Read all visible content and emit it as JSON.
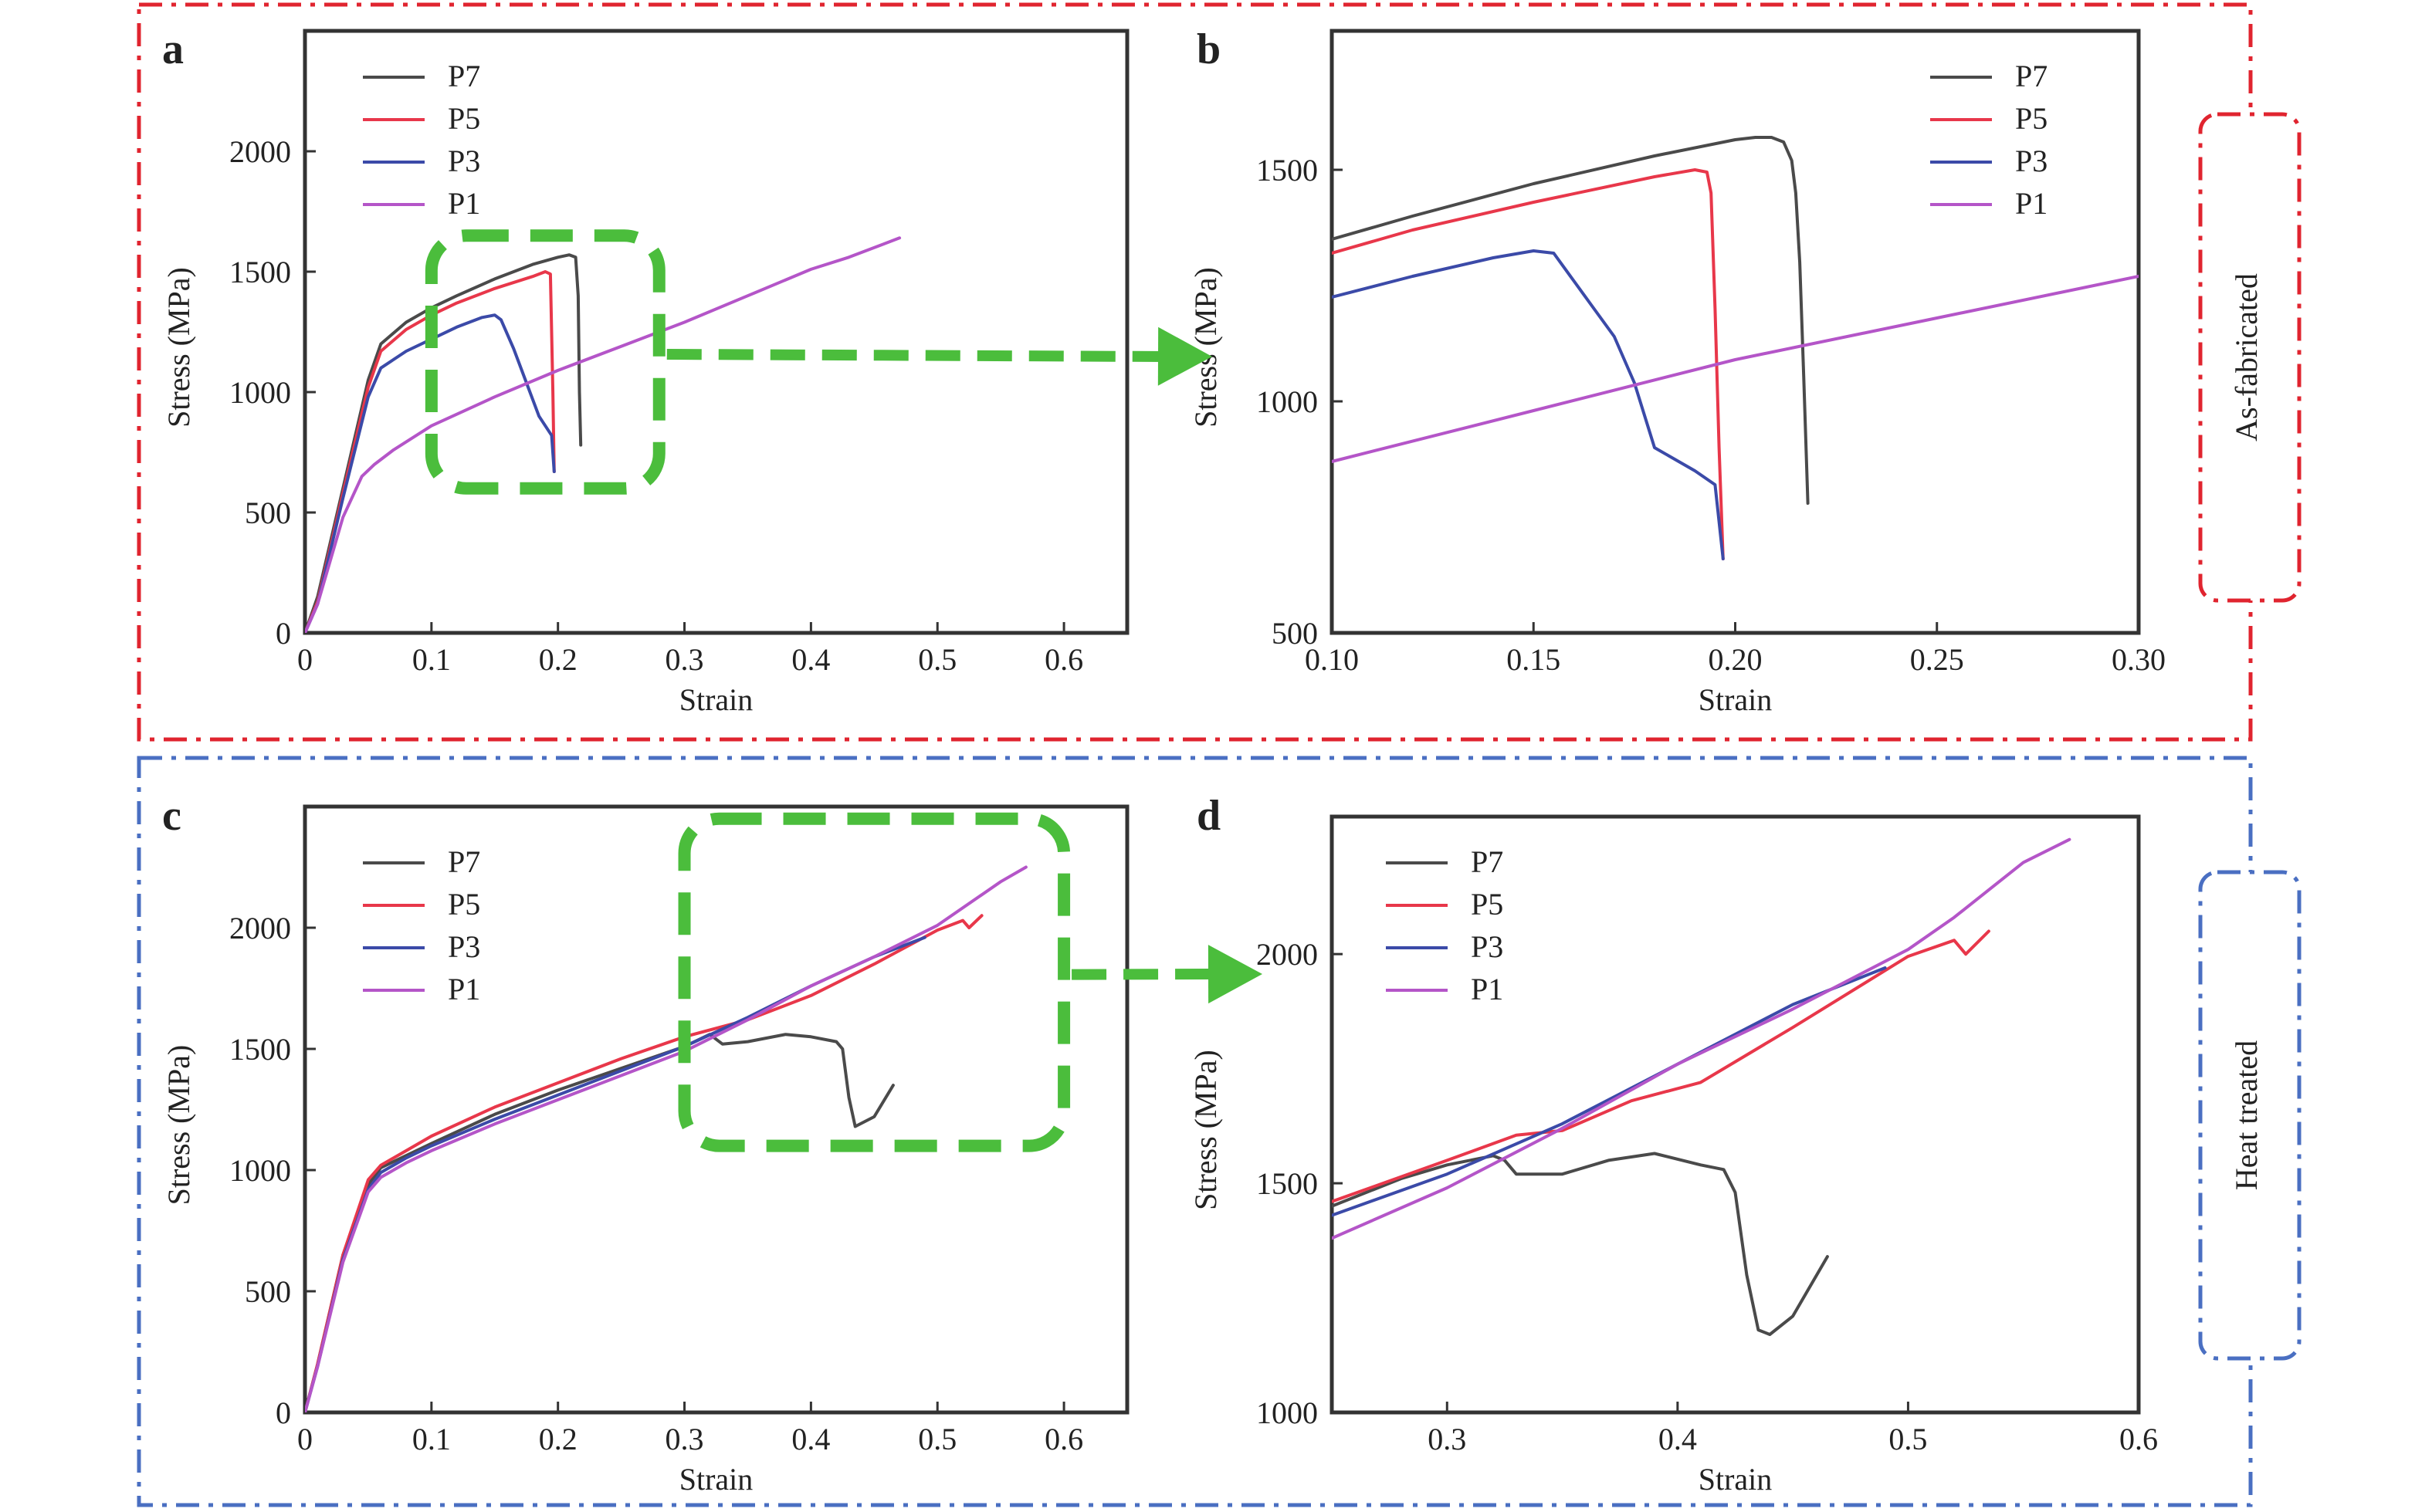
{
  "figure": {
    "group_labels": {
      "top": "As-fabricated",
      "bottom": "Heat treated"
    },
    "colors": {
      "top_frame": "#e0242f",
      "bottom_frame": "#4a6fc2",
      "zoom_box": "#4bbd3c",
      "P7": "#4a4a4a",
      "P5": "#e8374a",
      "P3": "#3b4aa8",
      "P1": "#b455c8"
    }
  },
  "chart_data": [
    {
      "panel": "a",
      "type": "line",
      "xlabel": "Strain",
      "ylabel": "Stress (MPa)",
      "xlim": [
        0,
        0.65
      ],
      "ylim": [
        0,
        2500
      ],
      "xticks": [
        "0",
        "0.1",
        "0.2",
        "0.3",
        "0.4",
        "0.5",
        "0.6"
      ],
      "xtick_values": [
        0,
        0.1,
        0.2,
        0.3,
        0.4,
        0.5,
        0.6
      ],
      "yticks": [
        "0",
        "500",
        "1000",
        "1500",
        "2000"
      ],
      "ytick_values": [
        0,
        500,
        1000,
        1500,
        2000
      ],
      "legend_position": "top-left",
      "zoom_region": {
        "x": [
          0.1,
          0.28
        ],
        "y": [
          600,
          1650
        ]
      },
      "series": [
        {
          "name": "P7",
          "color": "#4a4a4a",
          "x": [
            0,
            0.01,
            0.03,
            0.05,
            0.06,
            0.08,
            0.1,
            0.12,
            0.15,
            0.18,
            0.2,
            0.209,
            0.214,
            0.216,
            0.217,
            0.218
          ],
          "y": [
            0,
            150,
            600,
            1050,
            1200,
            1290,
            1350,
            1400,
            1470,
            1530,
            1560,
            1570,
            1560,
            1400,
            1000,
            780
          ]
        },
        {
          "name": "P5",
          "color": "#e8374a",
          "x": [
            0,
            0.01,
            0.03,
            0.05,
            0.06,
            0.08,
            0.1,
            0.12,
            0.15,
            0.18,
            0.19,
            0.194,
            0.196,
            0.197
          ],
          "y": [
            0,
            130,
            580,
            1020,
            1170,
            1260,
            1320,
            1370,
            1430,
            1480,
            1500,
            1490,
            1000,
            670
          ]
        },
        {
          "name": "P3",
          "color": "#3b4aa8",
          "x": [
            0,
            0.01,
            0.03,
            0.05,
            0.06,
            0.08,
            0.1,
            0.12,
            0.14,
            0.15,
            0.155,
            0.165,
            0.175,
            0.185,
            0.195,
            0.197
          ],
          "y": [
            0,
            120,
            560,
            980,
            1100,
            1170,
            1220,
            1270,
            1310,
            1320,
            1300,
            1180,
            1040,
            900,
            820,
            670
          ]
        },
        {
          "name": "P1",
          "color": "#b455c8",
          "x": [
            0,
            0.01,
            0.03,
            0.045,
            0.055,
            0.07,
            0.1,
            0.15,
            0.2,
            0.25,
            0.3,
            0.35,
            0.4,
            0.43,
            0.47
          ],
          "y": [
            0,
            120,
            480,
            650,
            700,
            760,
            860,
            980,
            1090,
            1190,
            1290,
            1400,
            1510,
            1560,
            1640
          ]
        }
      ]
    },
    {
      "panel": "b",
      "type": "line",
      "xlabel": "Strain",
      "ylabel": "Stress (MPa)",
      "xlim": [
        0.1,
        0.3
      ],
      "ylim": [
        500,
        1800
      ],
      "xticks": [
        "0.10",
        "0.15",
        "0.20",
        "0.25",
        "0.30"
      ],
      "xtick_values": [
        0.1,
        0.15,
        0.2,
        0.25,
        0.3
      ],
      "yticks": [
        "500",
        "1000",
        "1500"
      ],
      "ytick_values": [
        500,
        1000,
        1500
      ],
      "legend_position": "top-right",
      "series": [
        {
          "name": "P7",
          "color": "#4a4a4a",
          "x": [
            0.1,
            0.12,
            0.15,
            0.18,
            0.2,
            0.205,
            0.209,
            0.212,
            0.214,
            0.215,
            0.216,
            0.217,
            0.218
          ],
          "y": [
            1350,
            1400,
            1470,
            1530,
            1565,
            1570,
            1570,
            1560,
            1520,
            1450,
            1300,
            1050,
            780
          ]
        },
        {
          "name": "P5",
          "color": "#e8374a",
          "x": [
            0.1,
            0.12,
            0.15,
            0.18,
            0.19,
            0.193,
            0.194,
            0.195,
            0.196,
            0.197
          ],
          "y": [
            1320,
            1370,
            1430,
            1485,
            1500,
            1495,
            1450,
            1200,
            900,
            660
          ]
        },
        {
          "name": "P3",
          "color": "#3b4aa8",
          "x": [
            0.1,
            0.12,
            0.14,
            0.15,
            0.155,
            0.16,
            0.165,
            0.17,
            0.175,
            0.18,
            0.19,
            0.195,
            0.197
          ],
          "y": [
            1225,
            1270,
            1310,
            1325,
            1320,
            1260,
            1200,
            1140,
            1040,
            900,
            850,
            820,
            660
          ]
        },
        {
          "name": "P1",
          "color": "#b455c8",
          "x": [
            0.1,
            0.15,
            0.2,
            0.25,
            0.3
          ],
          "y": [
            870,
            980,
            1090,
            1180,
            1270
          ]
        }
      ]
    },
    {
      "panel": "c",
      "type": "line",
      "xlabel": "Strain",
      "ylabel": "Stress (MPa)",
      "xlim": [
        0,
        0.65
      ],
      "ylim": [
        0,
        2500
      ],
      "xticks": [
        "0",
        "0.1",
        "0.2",
        "0.3",
        "0.4",
        "0.5",
        "0.6"
      ],
      "xtick_values": [
        0,
        0.1,
        0.2,
        0.3,
        0.4,
        0.5,
        0.6
      ],
      "yticks": [
        "0",
        "500",
        "1000",
        "1500",
        "2000"
      ],
      "ytick_values": [
        0,
        500,
        1000,
        1500,
        2000
      ],
      "legend_position": "top-left",
      "zoom_region": {
        "x": [
          0.3,
          0.6
        ],
        "y": [
          1100,
          2450
        ]
      },
      "series": [
        {
          "name": "P7",
          "color": "#4a4a4a",
          "x": [
            0,
            0.01,
            0.03,
            0.05,
            0.06,
            0.08,
            0.1,
            0.15,
            0.2,
            0.25,
            0.3,
            0.32,
            0.33,
            0.35,
            0.38,
            0.4,
            0.42,
            0.425,
            0.43,
            0.435,
            0.45,
            0.465
          ],
          "y": [
            0,
            200,
            650,
            940,
            1010,
            1060,
            1110,
            1230,
            1330,
            1420,
            1510,
            1560,
            1520,
            1530,
            1560,
            1550,
            1530,
            1500,
            1300,
            1180,
            1220,
            1350
          ]
        },
        {
          "name": "P5",
          "color": "#e8374a",
          "x": [
            0,
            0.01,
            0.03,
            0.05,
            0.06,
            0.08,
            0.1,
            0.15,
            0.2,
            0.25,
            0.3,
            0.35,
            0.4,
            0.45,
            0.5,
            0.52,
            0.525,
            0.535
          ],
          "y": [
            0,
            200,
            650,
            960,
            1020,
            1080,
            1140,
            1260,
            1360,
            1460,
            1550,
            1620,
            1720,
            1850,
            1990,
            2030,
            2000,
            2050
          ]
        },
        {
          "name": "P3",
          "color": "#3b4aa8",
          "x": [
            0,
            0.01,
            0.03,
            0.05,
            0.06,
            0.08,
            0.1,
            0.15,
            0.2,
            0.25,
            0.3,
            0.35,
            0.4,
            0.45,
            0.49
          ],
          "y": [
            0,
            190,
            630,
            920,
            990,
            1050,
            1100,
            1210,
            1310,
            1410,
            1510,
            1630,
            1760,
            1880,
            1960
          ]
        },
        {
          "name": "P1",
          "color": "#b455c8",
          "x": [
            0,
            0.01,
            0.03,
            0.05,
            0.06,
            0.08,
            0.1,
            0.15,
            0.2,
            0.25,
            0.3,
            0.35,
            0.4,
            0.45,
            0.5,
            0.55,
            0.57
          ],
          "y": [
            0,
            190,
            620,
            910,
            970,
            1030,
            1080,
            1190,
            1290,
            1390,
            1490,
            1620,
            1760,
            1880,
            2010,
            2190,
            2250
          ]
        }
      ]
    },
    {
      "panel": "d",
      "type": "line",
      "xlabel": "Strain",
      "ylabel": "Stress (MPa)",
      "xlim": [
        0.25,
        0.6
      ],
      "ylim": [
        1000,
        2300
      ],
      "xticks": [
        "0.3",
        "0.4",
        "0.5",
        "0.6"
      ],
      "xtick_values": [
        0.3,
        0.4,
        0.5,
        0.6
      ],
      "yticks": [
        "1000",
        "1500",
        "2000"
      ],
      "ytick_values": [
        1000,
        1500,
        2000
      ],
      "legend_position": "top-left",
      "series": [
        {
          "name": "P7",
          "color": "#4a4a4a",
          "x": [
            0.25,
            0.28,
            0.3,
            0.32,
            0.325,
            0.33,
            0.35,
            0.37,
            0.39,
            0.41,
            0.42,
            0.425,
            0.43,
            0.435,
            0.44,
            0.45,
            0.465
          ],
          "y": [
            1450,
            1510,
            1540,
            1560,
            1550,
            1520,
            1520,
            1550,
            1565,
            1540,
            1530,
            1480,
            1300,
            1180,
            1170,
            1210,
            1340
          ]
        },
        {
          "name": "P5",
          "color": "#e8374a",
          "x": [
            0.25,
            0.3,
            0.33,
            0.35,
            0.38,
            0.41,
            0.45,
            0.5,
            0.52,
            0.525,
            0.535
          ],
          "y": [
            1460,
            1550,
            1605,
            1615,
            1680,
            1720,
            1840,
            1995,
            2030,
            2000,
            2050
          ]
        },
        {
          "name": "P3",
          "color": "#3b4aa8",
          "x": [
            0.25,
            0.3,
            0.35,
            0.4,
            0.45,
            0.49
          ],
          "y": [
            1430,
            1520,
            1630,
            1760,
            1890,
            1970
          ]
        },
        {
          "name": "P1",
          "color": "#b455c8",
          "x": [
            0.25,
            0.3,
            0.35,
            0.4,
            0.45,
            0.5,
            0.52,
            0.55,
            0.57
          ],
          "y": [
            1380,
            1490,
            1620,
            1760,
            1880,
            2010,
            2080,
            2200,
            2250
          ]
        }
      ]
    }
  ]
}
